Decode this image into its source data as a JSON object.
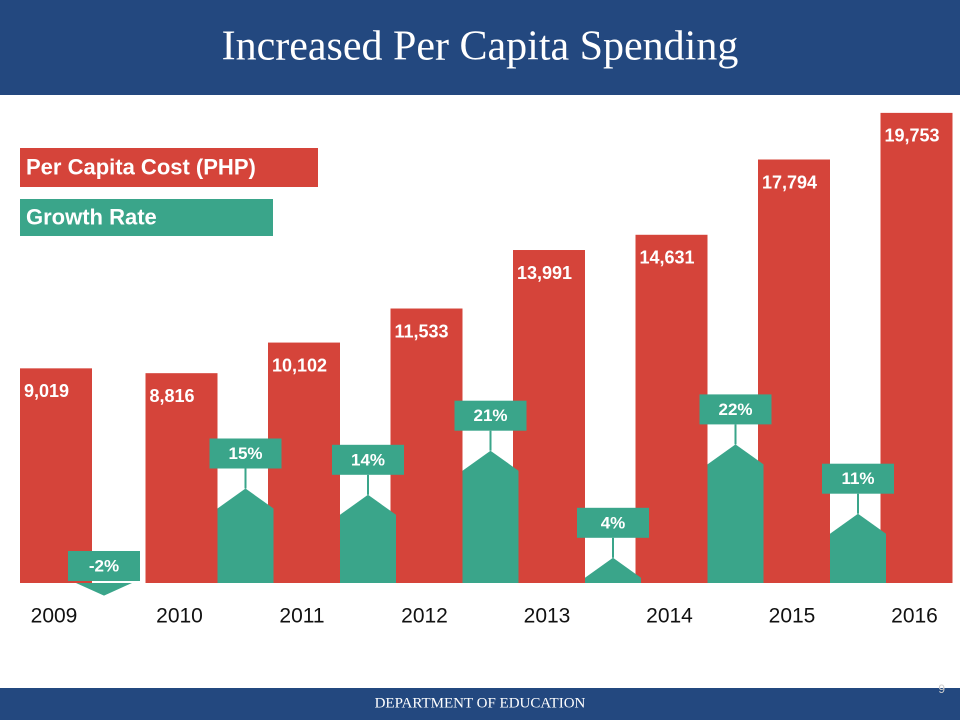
{
  "header": {
    "title": "Increased Per Capita Spending"
  },
  "chart_data": {
    "type": "bar",
    "categories": [
      "2009",
      "2010",
      "2011",
      "2012",
      "2013",
      "2014",
      "2015",
      "2016"
    ],
    "series": [
      {
        "name": "Per Capita Cost (PHP)",
        "color": "#d5443a",
        "values": [
          9019,
          8816,
          10102,
          11533,
          13991,
          14631,
          17794,
          19753
        ],
        "value_labels": [
          "9,019",
          "8,816",
          "10,102",
          "11,533",
          "13,991",
          "14,631",
          "17,794",
          "19,753"
        ]
      },
      {
        "name": "Growth Rate",
        "color": "#3aa58a",
        "values": [
          null,
          -2,
          15,
          14,
          21,
          4,
          22,
          11
        ],
        "value_labels": [
          null,
          "-2%",
          "15%",
          "14%",
          "21%",
          "4%",
          "22%",
          "11%"
        ]
      }
    ]
  },
  "footer": {
    "text": "DEPARTMENT OF EDUCATION",
    "page_number": 9
  }
}
